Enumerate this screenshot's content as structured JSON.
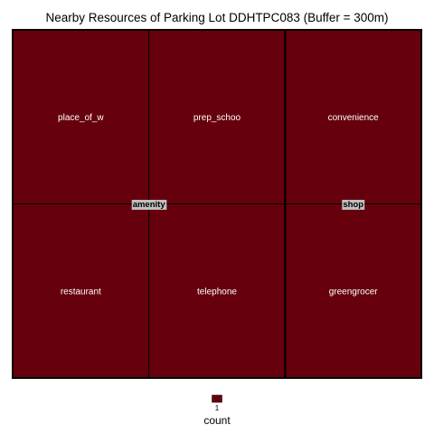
{
  "chart_data": {
    "type": "treemap",
    "title": "Nearby Resources of Parking Lot DDHTPC083 (Buffer = 300m)",
    "groups": [
      {
        "name": "amenity",
        "items": [
          {
            "label": "place_of_w",
            "value": 1
          },
          {
            "label": "prep_schoo",
            "value": 1
          },
          {
            "label": "restaurant",
            "value": 1
          },
          {
            "label": "telephone",
            "value": 1
          }
        ]
      },
      {
        "name": "shop",
        "items": [
          {
            "label": "convenience",
            "value": 1
          },
          {
            "label": "greengrocer",
            "value": 1
          }
        ]
      }
    ],
    "legend": {
      "title": "count",
      "values": [
        "1"
      ],
      "colors": [
        "#67000d"
      ],
      "placement": "bottom"
    },
    "colors": {
      "tile_fill": "#67000d",
      "tile_border": "#000000",
      "group_label_bg": "#bfbfbf"
    }
  }
}
